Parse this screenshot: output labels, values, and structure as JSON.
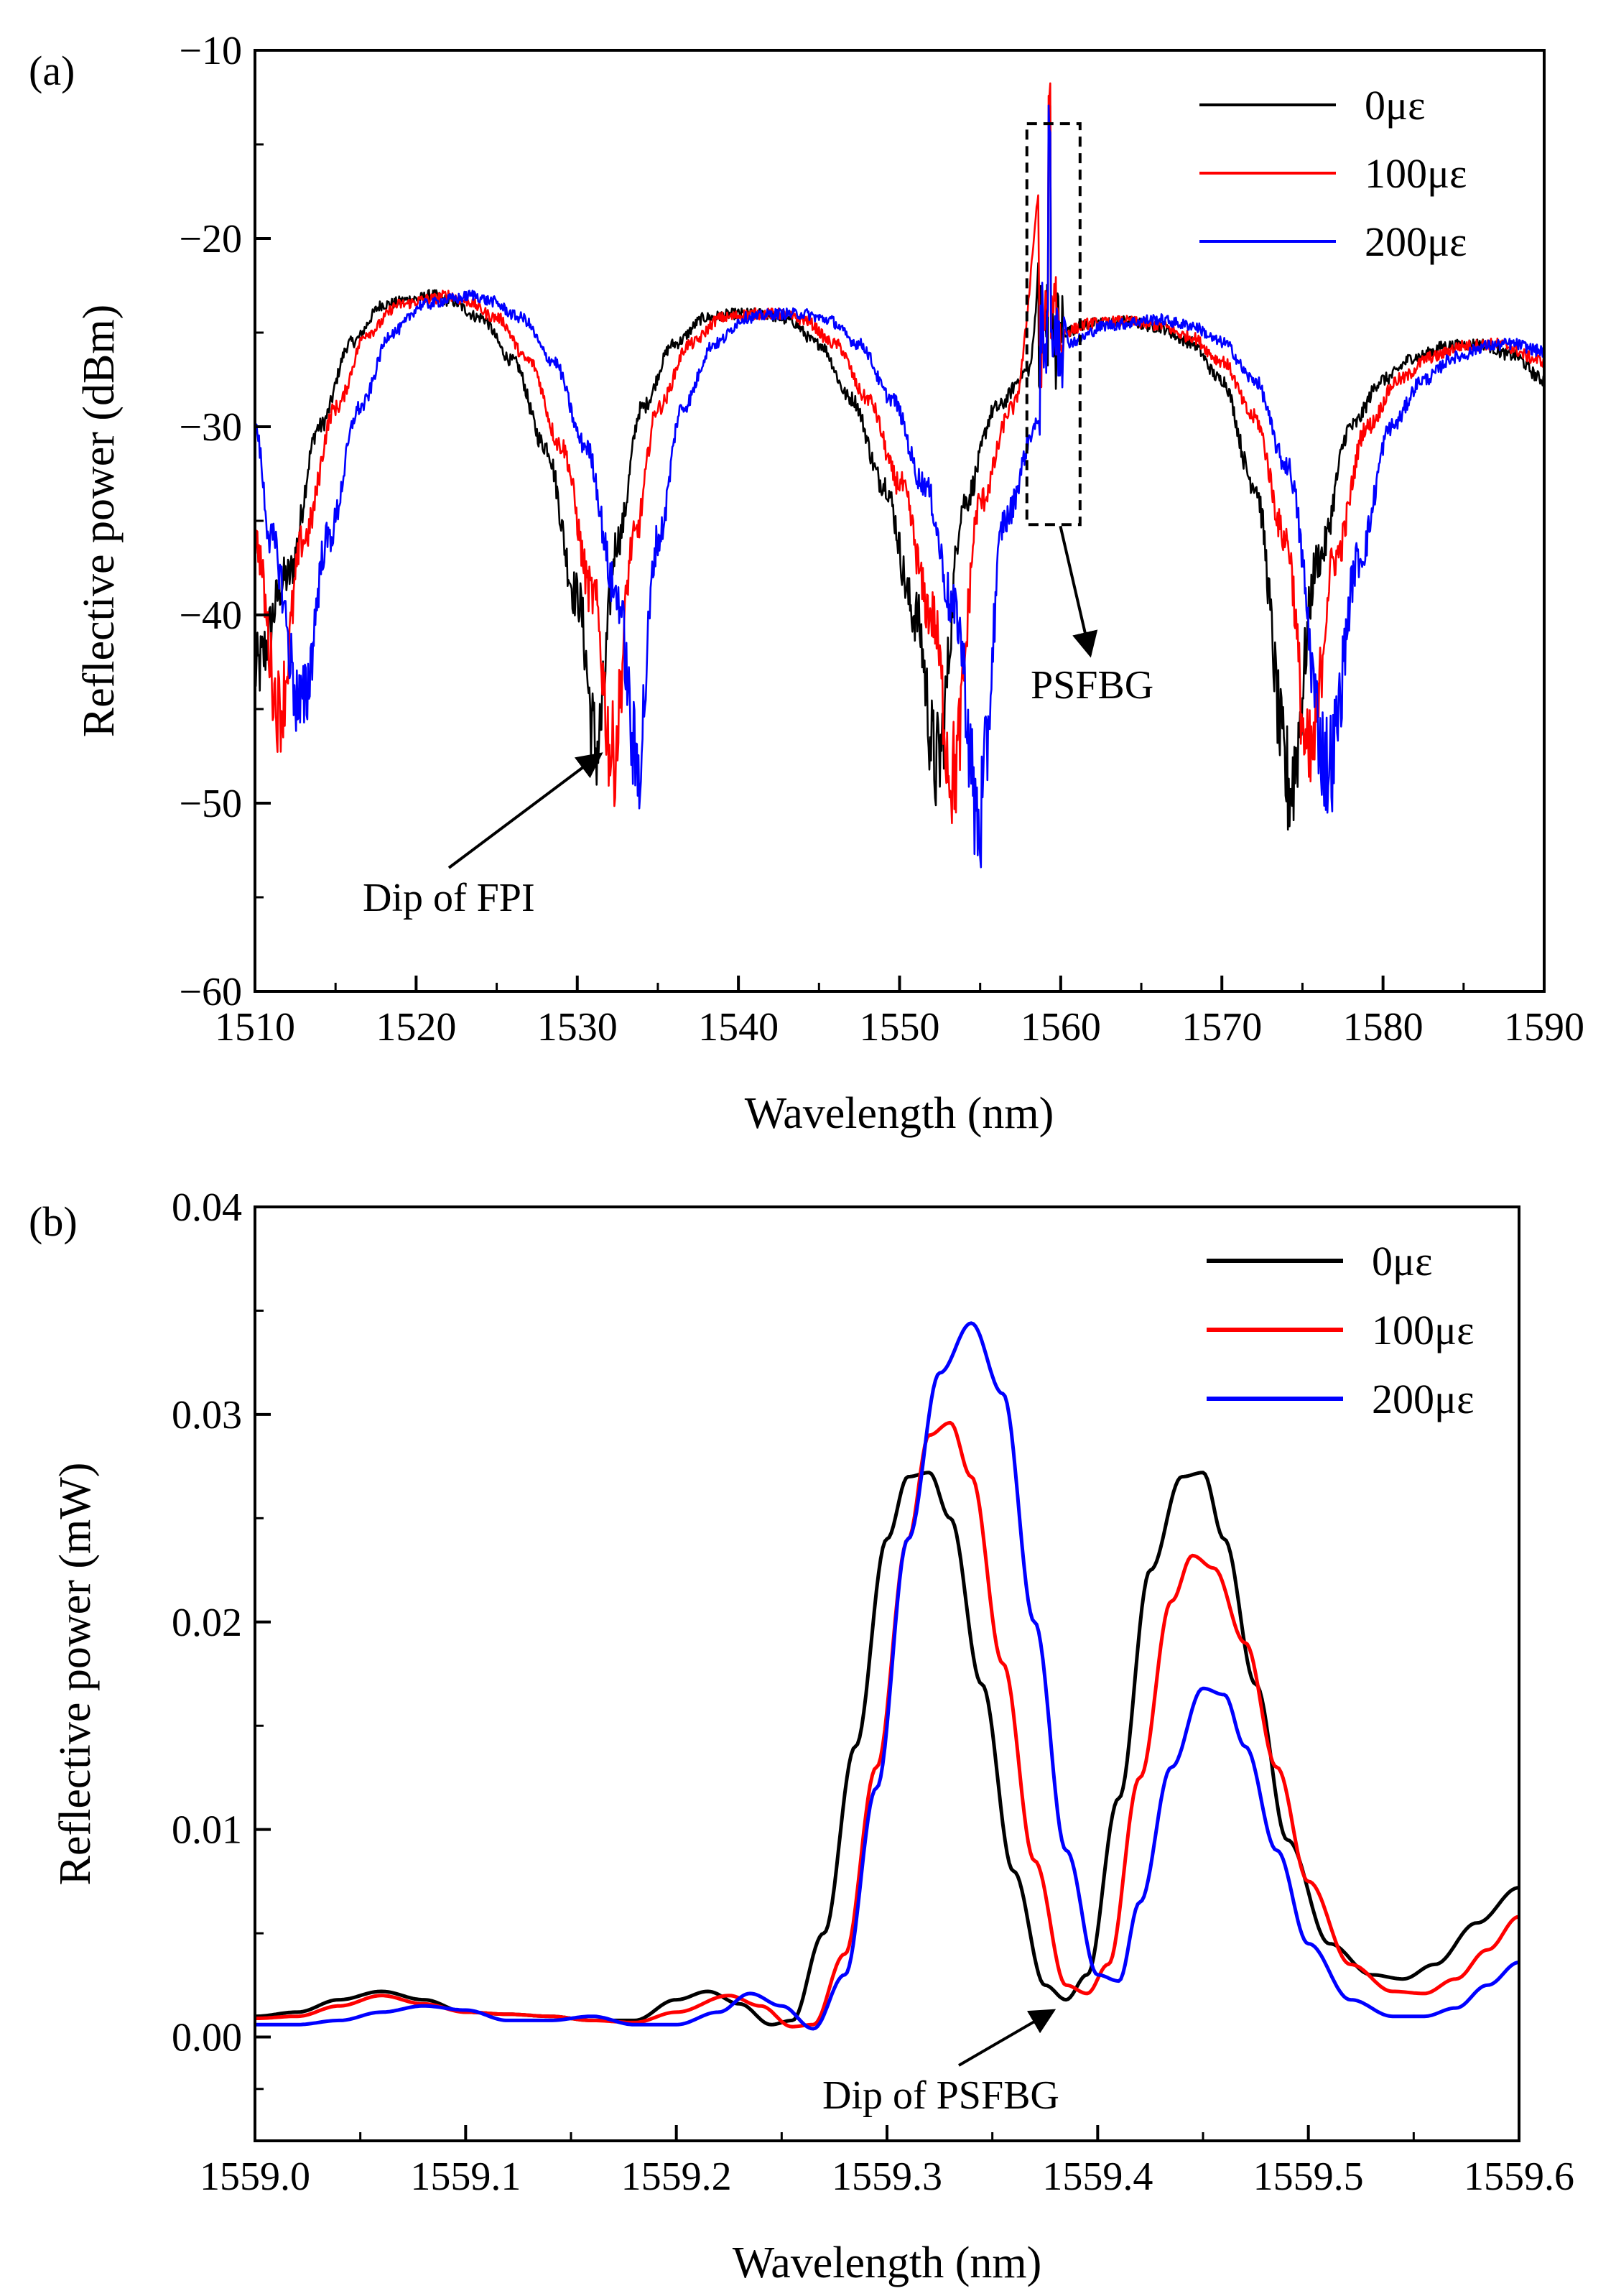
{
  "chart_data": [
    {
      "panel_label": "(a)",
      "type": "line",
      "xlabel": "Wavelength (nm)",
      "ylabel": "Reflective power (dBm)",
      "xlim": [
        1510,
        1590
      ],
      "ylim": [
        -60,
        -10
      ],
      "xticks": [
        1510,
        1520,
        1530,
        1540,
        1550,
        1560,
        1570,
        1580,
        1590
      ],
      "xtick_labels": [
        "1510",
        "1520",
        "1530",
        "1540",
        "1550",
        "1560",
        "1570",
        "1580",
        "1590"
      ],
      "yticks": [
        -60,
        -50,
        -40,
        -30,
        -20,
        -10
      ],
      "ytick_labels": [
        "−60",
        "−50",
        "−40",
        "−30",
        "−20",
        "−10"
      ],
      "legend_position": "top-right",
      "series": [
        {
          "name": "0με",
          "color": "#000000",
          "dips": [
            1510.7,
            1531.2,
            1552.3,
            1574.2
          ],
          "dip_depths": [
            -45,
            -47,
            -48,
            -49
          ],
          "peaks": [
            -23,
            -24,
            -25.6
          ],
          "spike_peak": -14.5,
          "x": [
            1510,
            1512,
            1514,
            1516,
            1518,
            1520,
            1521,
            1522,
            1524,
            1526,
            1528,
            1530,
            1531.2,
            1532.5,
            1534,
            1536,
            1538,
            1540,
            1541.5,
            1543,
            1545,
            1547,
            1549,
            1551,
            1552.3,
            1554,
            1556,
            1558,
            1559.3,
            1560,
            1562,
            1564,
            1566,
            1568,
            1570,
            1572,
            1574.2,
            1576,
            1578,
            1580,
            1582,
            1584,
            1586,
            1588,
            1590
          ],
          "y": [
            -43,
            -38,
            -30,
            -25.5,
            -23.5,
            -23.2,
            -23,
            -23.3,
            -24.2,
            -26.5,
            -31,
            -39,
            -47,
            -36,
            -29,
            -25.6,
            -24.2,
            -24,
            -24,
            -24.3,
            -25.6,
            -28.5,
            -33,
            -40,
            -48,
            -34,
            -29,
            -27,
            -14.5,
            -25,
            -24.5,
            -24.4,
            -24.7,
            -25.5,
            -27.5,
            -33,
            -49,
            -37,
            -30,
            -27.5,
            -26.3,
            -25.7,
            -25.6,
            -26.2,
            -27.5
          ]
        },
        {
          "name": "100με",
          "color": "#ff0000",
          "dips": [
            1511.5,
            1532.2,
            1553.3,
            1575.4
          ],
          "dip_depths": [
            -45,
            -47.5,
            -48.5,
            -48
          ],
          "peaks": [
            -23,
            -24,
            -25.6
          ],
          "spike_peak": -14.5,
          "x": [
            1510,
            1511.5,
            1513,
            1515,
            1517,
            1519,
            1521,
            1522,
            1523,
            1525,
            1527,
            1529,
            1531,
            1532.2,
            1533.5,
            1535,
            1537,
            1539,
            1541,
            1542.5,
            1544,
            1546,
            1548,
            1550,
            1552,
            1553.3,
            1555,
            1557,
            1559.3,
            1560,
            1562,
            1564,
            1566,
            1568,
            1570,
            1572,
            1574,
            1575.4,
            1577,
            1579,
            1581,
            1583,
            1585,
            1587,
            1590
          ],
          "y": [
            -36,
            -45,
            -36,
            -29,
            -25,
            -23.5,
            -23.2,
            -23,
            -23.3,
            -24.2,
            -26.5,
            -31,
            -39,
            -47.5,
            -36,
            -29,
            -25.6,
            -24.2,
            -24,
            -24,
            -24.3,
            -25.6,
            -28.5,
            -33,
            -40,
            -48.5,
            -34,
            -29,
            -14.5,
            -25,
            -24.5,
            -24.4,
            -24.6,
            -25.2,
            -26.5,
            -29.5,
            -36,
            -48,
            -37,
            -30,
            -27.5,
            -26.3,
            -25.7,
            -25.6,
            -26.5
          ]
        },
        {
          "name": "200με",
          "color": "#0000ff",
          "dips": [
            1512.9,
            1533.7,
            1554.9,
            1576.6
          ],
          "dip_depths": [
            -45,
            -48,
            -51,
            -48
          ],
          "peaks": [
            -23,
            -24,
            -25.6
          ],
          "spike_peak": -14.5,
          "x": [
            1510,
            1511,
            1512.9,
            1514.5,
            1516.5,
            1518.5,
            1520.5,
            1522.5,
            1523.5,
            1524.5,
            1526.5,
            1528.5,
            1530.5,
            1532.5,
            1533.7,
            1535,
            1536.5,
            1538.5,
            1540.5,
            1542.5,
            1544,
            1545.5,
            1547.5,
            1549.5,
            1551.5,
            1553.5,
            1554.9,
            1556.5,
            1558.5,
            1559.3,
            1560.5,
            1563,
            1566,
            1568,
            1570,
            1572,
            1574,
            1576.6,
            1578.5,
            1580.5,
            1582.5,
            1584.5,
            1586.5,
            1588,
            1590
          ],
          "y": [
            -30,
            -36,
            -45,
            -36,
            -29,
            -25,
            -23.5,
            -23.2,
            -23,
            -23.3,
            -24.2,
            -26.5,
            -31,
            -39,
            -48,
            -36,
            -29,
            -25.6,
            -24.2,
            -24,
            -24,
            -24.3,
            -25.6,
            -28.5,
            -33,
            -40,
            -51,
            -35,
            -30,
            -14.5,
            -25.5,
            -24.6,
            -24.3,
            -24.6,
            -25.5,
            -27.5,
            -32,
            -48,
            -37,
            -30,
            -27.5,
            -26.3,
            -25.7,
            -25.6,
            -26
          ]
        }
      ],
      "annotations": [
        {
          "text": "Dip of FPI",
          "points_to": [
            1531.2,
            -47
          ]
        },
        {
          "text": "PSFBG",
          "points_to": [
            1559.8,
            -35.5
          ],
          "box_x": [
            1557.9,
            1561.2
          ],
          "box_y": [
            -35.2,
            -13.9
          ]
        }
      ]
    },
    {
      "panel_label": "(b)",
      "type": "line",
      "xlabel": "Wavelength (nm)",
      "ylabel": "Reflective power (mW)",
      "xlim": [
        1559.0,
        1559.6
      ],
      "ylim": [
        -0.005,
        0.04
      ],
      "xticks": [
        1559.0,
        1559.1,
        1559.2,
        1559.3,
        1559.4,
        1559.5,
        1559.6
      ],
      "xtick_labels": [
        "1559.0",
        "1559.1",
        "1559.2",
        "1559.3",
        "1559.4",
        "1559.5",
        "1559.6"
      ],
      "yticks": [
        0.0,
        0.01,
        0.02,
        0.03,
        0.04
      ],
      "ytick_labels": [
        "0.00",
        "0.01",
        "0.02",
        "0.03",
        "0.04"
      ],
      "legend_position": "top-right",
      "series": [
        {
          "name": "0με",
          "color": "#000000",
          "x": [
            1559.0,
            1559.02,
            1559.04,
            1559.06,
            1559.08,
            1559.1,
            1559.12,
            1559.14,
            1559.16,
            1559.18,
            1559.2,
            1559.215,
            1559.23,
            1559.245,
            1559.255,
            1559.27,
            1559.285,
            1559.3,
            1559.31,
            1559.32,
            1559.33,
            1559.345,
            1559.36,
            1559.375,
            1559.385,
            1559.395,
            1559.41,
            1559.425,
            1559.44,
            1559.45,
            1559.46,
            1559.475,
            1559.49,
            1559.51,
            1559.53,
            1559.545,
            1559.56,
            1559.58,
            1559.6
          ],
          "y": [
            0.001,
            0.0012,
            0.0018,
            0.0022,
            0.0018,
            0.0012,
            0.0011,
            0.001,
            0.0008,
            0.0008,
            0.0018,
            0.0022,
            0.0016,
            0.0006,
            0.0008,
            0.005,
            0.014,
            0.024,
            0.027,
            0.0272,
            0.025,
            0.017,
            0.008,
            0.0025,
            0.0018,
            0.003,
            0.0115,
            0.0225,
            0.027,
            0.0272,
            0.024,
            0.017,
            0.0095,
            0.0045,
            0.003,
            0.0028,
            0.0035,
            0.0055,
            0.0072
          ]
        },
        {
          "name": "100με",
          "color": "#ff0000",
          "x": [
            1559.0,
            1559.02,
            1559.04,
            1559.06,
            1559.08,
            1559.1,
            1559.12,
            1559.14,
            1559.16,
            1559.18,
            1559.2,
            1559.225,
            1559.24,
            1559.255,
            1559.265,
            1559.28,
            1559.295,
            1559.31,
            1559.32,
            1559.33,
            1559.34,
            1559.355,
            1559.37,
            1559.385,
            1559.395,
            1559.405,
            1559.42,
            1559.435,
            1559.445,
            1559.455,
            1559.47,
            1559.485,
            1559.5,
            1559.52,
            1559.54,
            1559.555,
            1559.57,
            1559.585,
            1559.6
          ],
          "y": [
            0.0009,
            0.001,
            0.0015,
            0.002,
            0.0016,
            0.0012,
            0.0011,
            0.001,
            0.0008,
            0.0007,
            0.0012,
            0.002,
            0.0015,
            0.0005,
            0.0006,
            0.004,
            0.013,
            0.024,
            0.029,
            0.0296,
            0.027,
            0.018,
            0.0085,
            0.0025,
            0.0021,
            0.0035,
            0.0125,
            0.021,
            0.0232,
            0.0226,
            0.019,
            0.013,
            0.0075,
            0.0035,
            0.0022,
            0.0021,
            0.0028,
            0.0042,
            0.0058
          ]
        },
        {
          "name": "200με",
          "color": "#0000ff",
          "x": [
            1559.0,
            1559.02,
            1559.04,
            1559.06,
            1559.08,
            1559.1,
            1559.12,
            1559.14,
            1559.16,
            1559.18,
            1559.2,
            1559.22,
            1559.235,
            1559.25,
            1559.265,
            1559.28,
            1559.295,
            1559.31,
            1559.325,
            1559.34,
            1559.355,
            1559.37,
            1559.385,
            1559.4,
            1559.41,
            1559.42,
            1559.435,
            1559.45,
            1559.46,
            1559.47,
            1559.485,
            1559.5,
            1559.52,
            1559.54,
            1559.555,
            1559.57,
            1559.585,
            1559.6
          ],
          "y": [
            0.0006,
            0.0006,
            0.0008,
            0.0012,
            0.0015,
            0.0013,
            0.0008,
            0.0008,
            0.001,
            0.0006,
            0.0006,
            0.0012,
            0.0021,
            0.0015,
            0.0004,
            0.003,
            0.012,
            0.024,
            0.032,
            0.0344,
            0.031,
            0.02,
            0.009,
            0.003,
            0.0027,
            0.0065,
            0.013,
            0.0168,
            0.0165,
            0.014,
            0.009,
            0.0045,
            0.0018,
            0.001,
            0.001,
            0.0014,
            0.0025,
            0.0036
          ]
        }
      ],
      "annotations": [
        {
          "text": "Dip of PSFBG",
          "points_to": [
            1559.375,
            0.0017
          ]
        }
      ]
    }
  ]
}
